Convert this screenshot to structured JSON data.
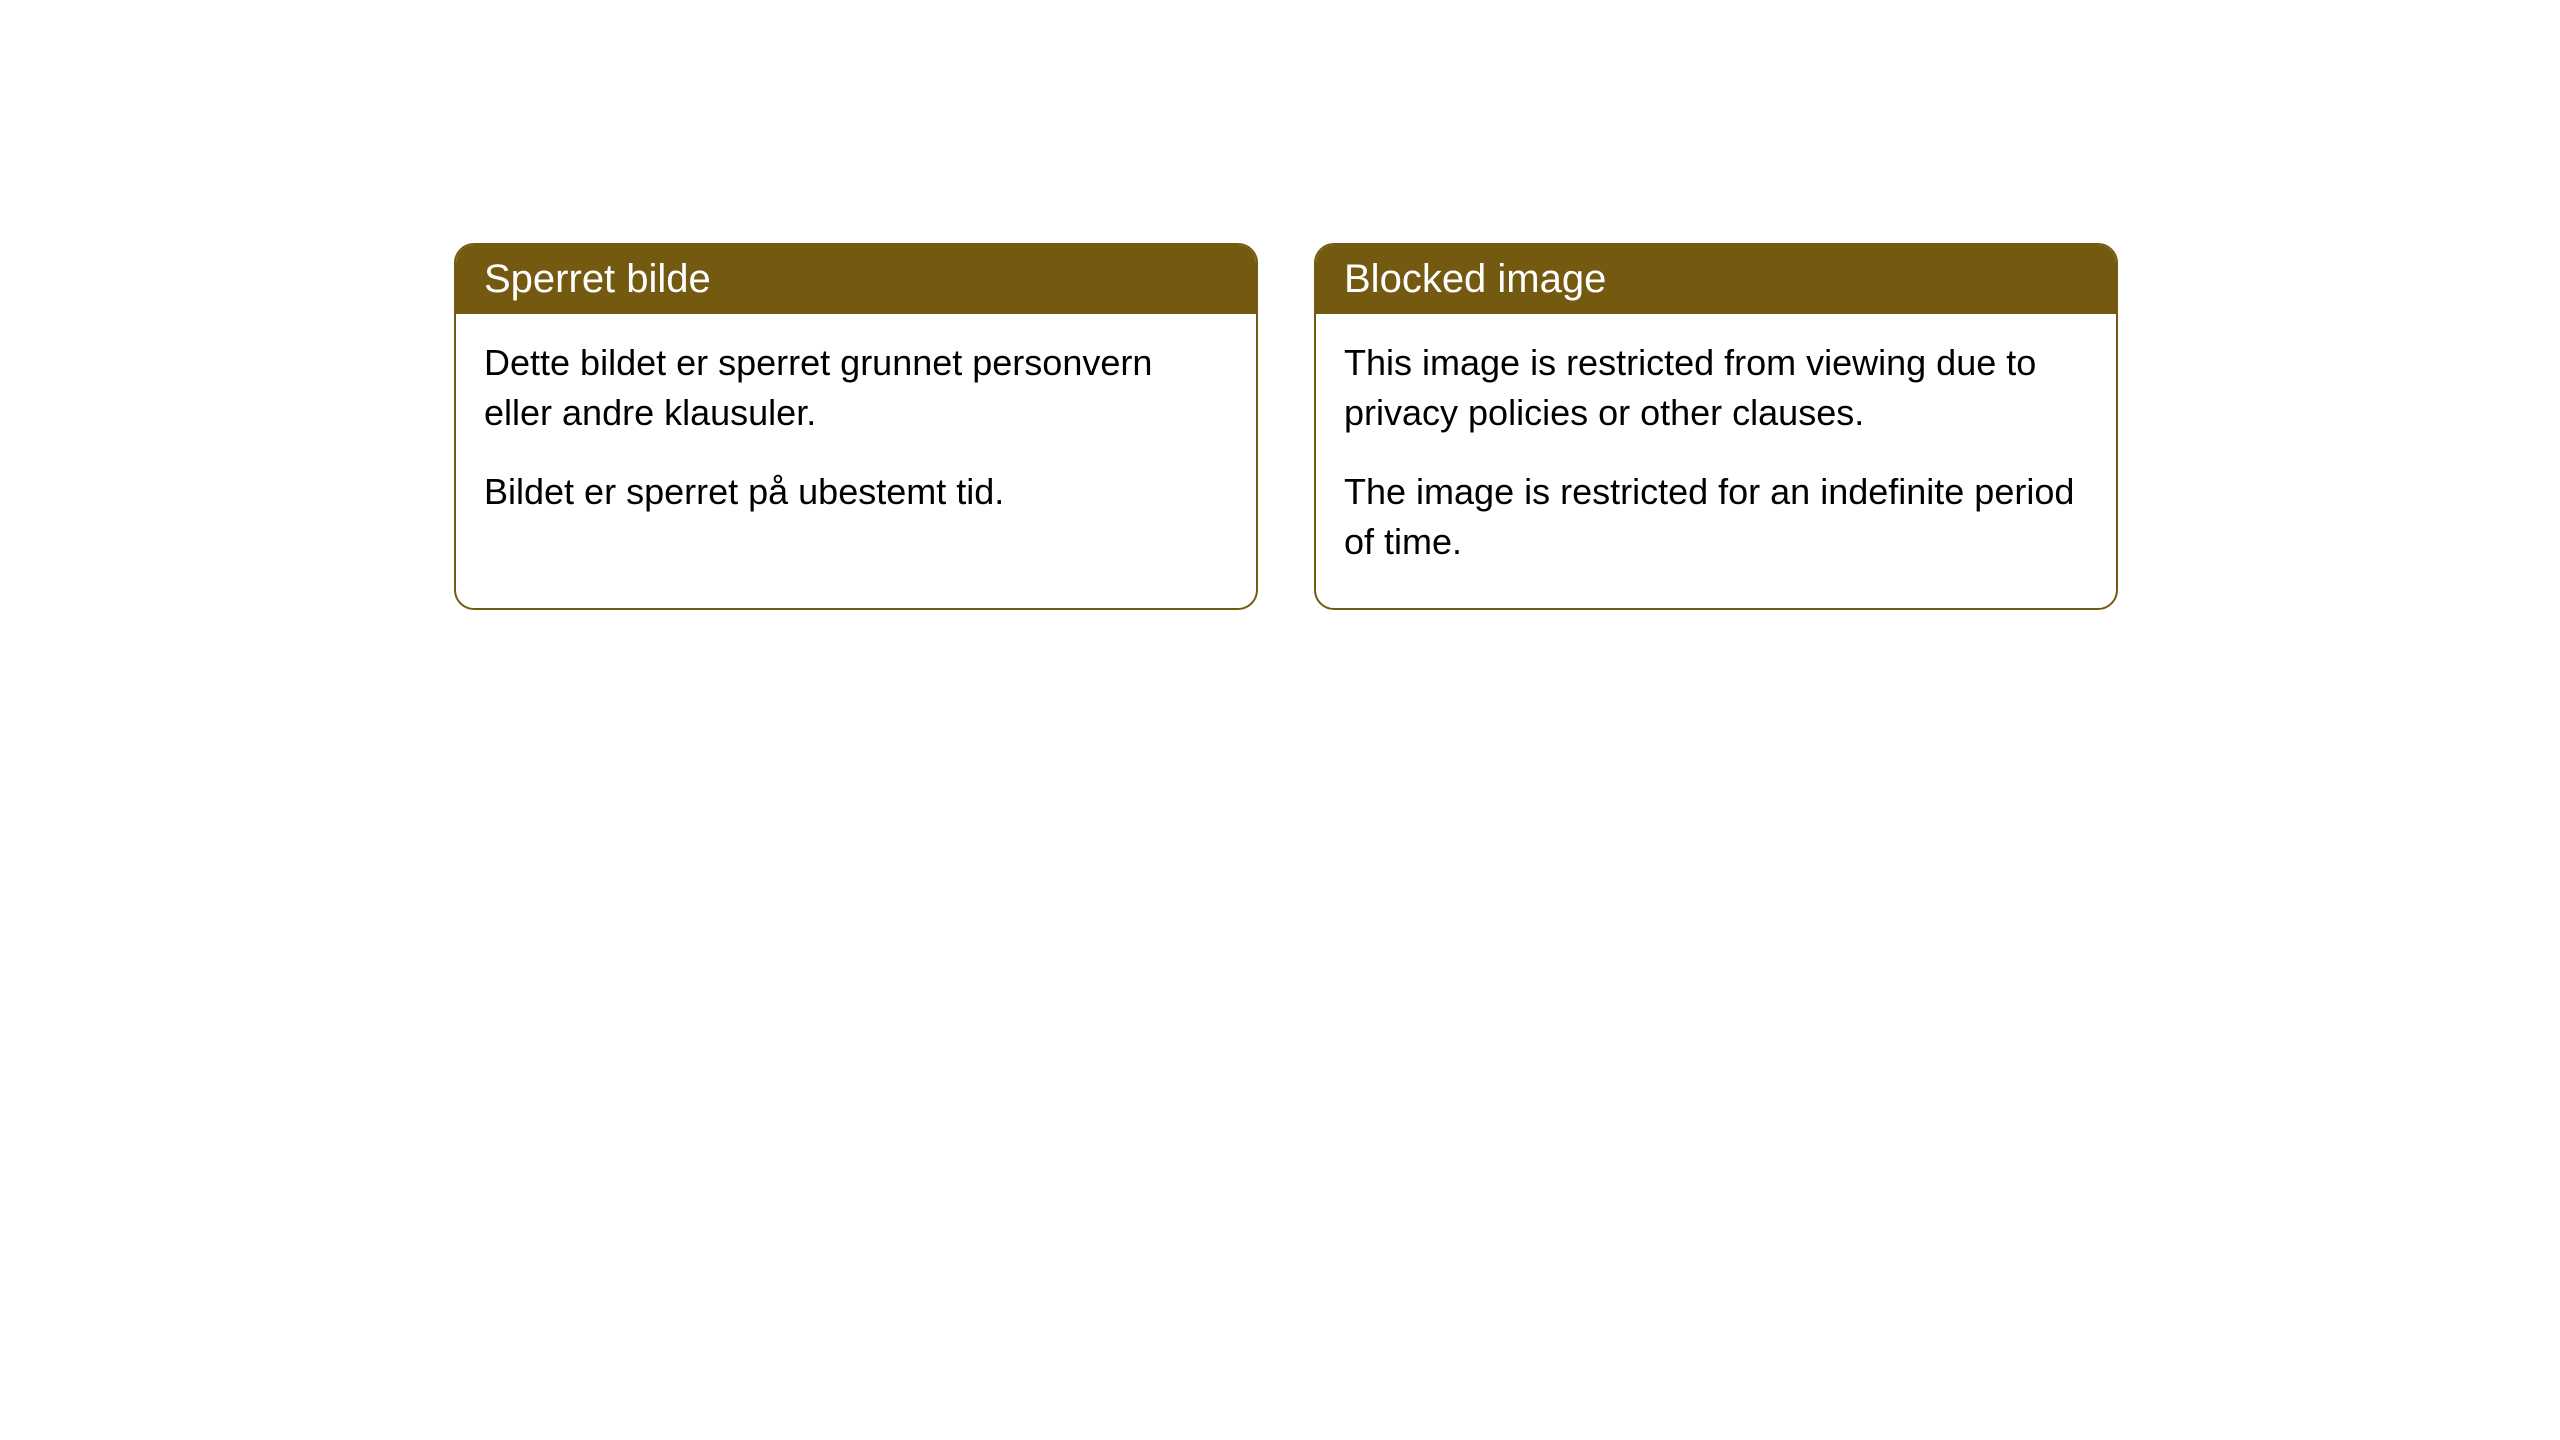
{
  "cards": [
    {
      "title": "Sperret bilde",
      "paragraph1": "Dette bildet er sperret grunnet personvern eller andre klausuler.",
      "paragraph2": "Bildet er sperret på ubestemt tid."
    },
    {
      "title": "Blocked image",
      "paragraph1": "This image is restricted from viewing due to privacy policies or other clauses.",
      "paragraph2": "The image is restricted for an indefinite period of time."
    }
  ],
  "styling": {
    "header_bg_color": "#735a10",
    "header_text_color": "#ffffff",
    "border_color": "#735a10",
    "body_bg_color": "#ffffff",
    "body_text_color": "#000000",
    "page_bg_color": "#ffffff",
    "border_radius": 20,
    "header_font_size": 40,
    "body_font_size": 36
  }
}
